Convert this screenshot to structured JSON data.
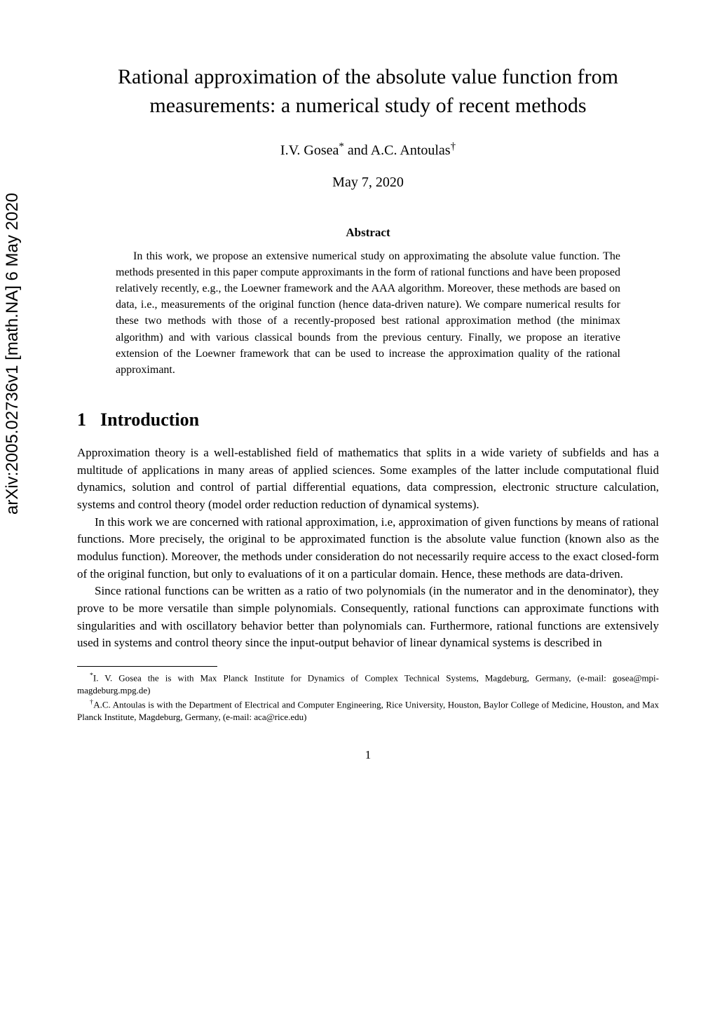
{
  "arxiv": {
    "label": "arXiv:2005.02736v1  [math.NA]  6 May 2020"
  },
  "title": "Rational approximation of the absolute value function from measurements: a numerical study of recent methods",
  "authors": {
    "text_before_sup1": "I.V. Gosea",
    "sup1": "*",
    "text_middle": " and A.C. Antoulas",
    "sup2": "†"
  },
  "date": "May 7, 2020",
  "abstract": {
    "heading": "Abstract",
    "body": "In this work, we propose an extensive numerical study on approximating the absolute value function. The methods presented in this paper compute approximants in the form of rational functions and have been proposed relatively recently, e.g., the Loewner framework and the AAA algorithm. Moreover, these methods are based on data, i.e., measurements of the original function (hence data-driven nature). We compare numerical results for these two methods with those of a recently-proposed best rational approximation method (the minimax algorithm) and with various classical bounds from the previous century. Finally, we propose an iterative extension of the Loewner framework that can be used to increase the approximation quality of the rational approximant."
  },
  "section": {
    "number": "1",
    "title": "Introduction"
  },
  "paragraphs": {
    "p1": "Approximation theory is a well-established field of mathematics that splits in a wide variety of subfields and has a multitude of applications in many areas of applied sciences. Some examples of the latter include computational fluid dynamics, solution and control of partial differential equations, data compression, electronic structure calculation, systems and control theory (model order reduction reduction of dynamical systems).",
    "p2": "In this work we are concerned with rational approximation, i.e, approximation of given functions by means of rational functions. More precisely, the original to be approximated function is the absolute value function (known also as the modulus function). Moreover, the methods under consideration do not necessarily require access to the exact closed-form of the original function, but only to evaluations of it on a particular domain. Hence, these methods are data-driven.",
    "p3": "Since rational functions can be written as a ratio of two polynomials (in the numerator and in the denominator), they prove to be more versatile than simple polynomials. Consequently, rational functions can approximate functions with singularities and with oscillatory behavior better than polynomials can. Furthermore, rational functions are extensively used in systems and control theory since the input-output behavior of linear dynamical systems is described in"
  },
  "footnotes": {
    "f1_sup": "*",
    "f1": "I. V. Gosea the is with Max Planck Institute for Dynamics of Complex Technical Systems, Magdeburg, Germany, (e-mail: gosea@mpi-magdeburg.mpg.de)",
    "f2_sup": "†",
    "f2": "A.C. Antoulas is with the Department of Electrical and Computer Engineering, Rice University, Houston, Baylor College of Medicine, Houston, and Max Planck Institute, Magdeburg, Germany, (e-mail: aca@rice.edu)"
  },
  "page_number": "1"
}
